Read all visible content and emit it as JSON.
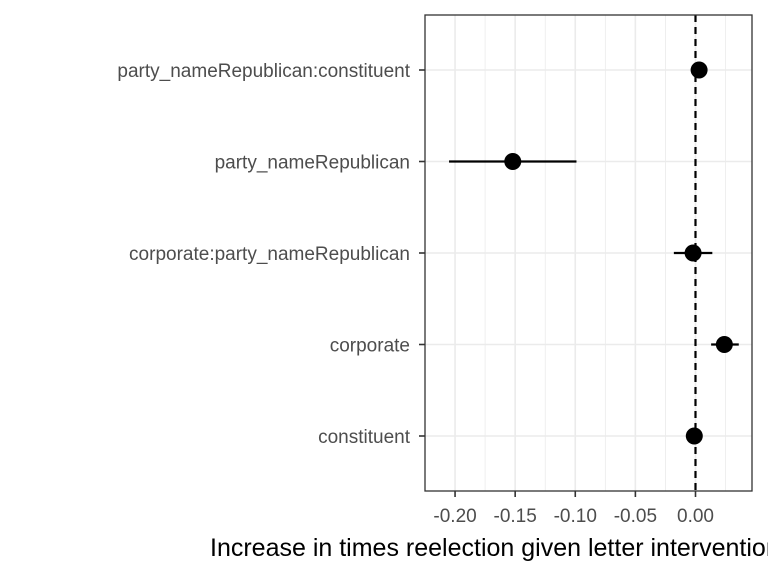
{
  "chart_data": {
    "type": "scatter",
    "subtype": "coefficient-plot",
    "title": "",
    "xlabel": "Increase in times reelection given letter intervention",
    "ylabel": "",
    "xlim": [
      -0.225,
      0.047
    ],
    "x_ticks": [
      -0.2,
      -0.15,
      -0.1,
      -0.05,
      0.0
    ],
    "x_tick_labels": [
      "-0.20",
      "-0.15",
      "-0.10",
      "-0.05",
      "0.00"
    ],
    "reference_line": 0,
    "grid": true,
    "legend": "none",
    "points": [
      {
        "term": "party_nameRepublican:constituent",
        "estimate": 0.003,
        "lower": 0.003,
        "upper": 0.003
      },
      {
        "term": "party_nameRepublican",
        "estimate": -0.152,
        "lower": -0.205,
        "upper": -0.099
      },
      {
        "term": "corporate:party_nameRepublican",
        "estimate": -0.002,
        "lower": -0.018,
        "upper": 0.014
      },
      {
        "term": "corporate",
        "estimate": 0.024,
        "lower": 0.013,
        "upper": 0.036
      },
      {
        "term": "constituent",
        "estimate": -0.001,
        "lower": -0.001,
        "upper": -0.001
      }
    ],
    "colors": {
      "point": "#000000",
      "grid": "#ebebeb",
      "panel_border": "#333333"
    }
  }
}
